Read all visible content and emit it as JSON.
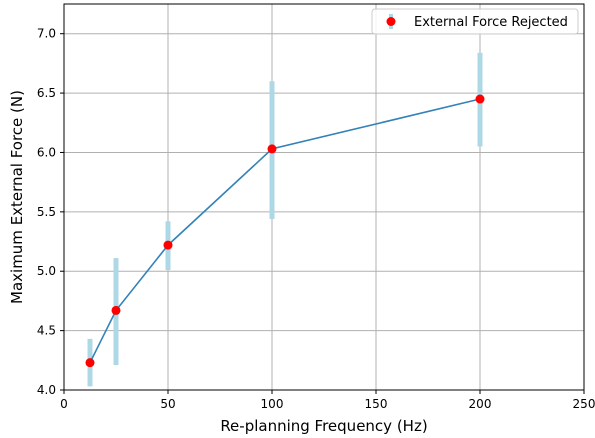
{
  "chart_data": {
    "type": "scatter",
    "title": "",
    "xlabel": "Re-planning Frequency (Hz)",
    "ylabel": "Maximum External Force (N)",
    "xlim": [
      0,
      250
    ],
    "ylim": [
      4.0,
      7.25
    ],
    "x_ticks": [
      0,
      50,
      100,
      150,
      200,
      250
    ],
    "y_ticks": [
      4.0,
      4.5,
      5.0,
      5.5,
      6.0,
      6.5,
      7.0
    ],
    "x_tick_labels": [
      "0",
      "50",
      "100",
      "150",
      "200",
      "250"
    ],
    "y_tick_labels": [
      "4.0",
      "4.5",
      "5.0",
      "5.5",
      "6.0",
      "6.5",
      "7.0"
    ],
    "grid": true,
    "legend_position": "top-right",
    "series": [
      {
        "name": "External Force Rejected",
        "x": [
          12.5,
          25,
          50,
          100,
          200
        ],
        "y": [
          4.23,
          4.67,
          5.22,
          6.03,
          6.45
        ],
        "error_low": [
          4.03,
          4.21,
          5.01,
          5.44,
          6.05
        ],
        "error_high": [
          4.43,
          5.11,
          5.42,
          6.6,
          6.84
        ],
        "marker_color": "#ff0000",
        "line_color": "#3382b8",
        "error_color": "#add8e6"
      }
    ]
  }
}
